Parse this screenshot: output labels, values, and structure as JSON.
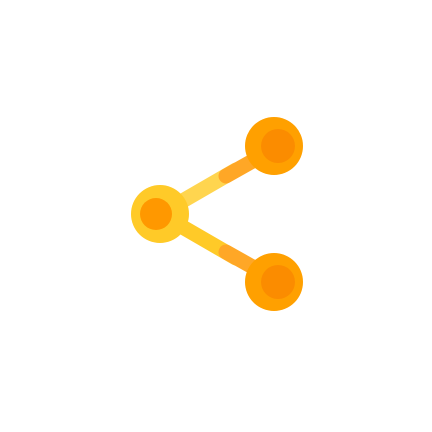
{
  "icon": {
    "name": "share-icon",
    "colors": {
      "background": "#ffffff",
      "connector_upper": "#FFD54F",
      "connector_lower": "#FFCA28",
      "connector_tip": "#FFA726",
      "left_node_outer": "#FFCA28",
      "left_node_inner": "#FF9800",
      "right_node_outer": "#FFA000",
      "right_node_inner": "#FB8C00"
    }
  }
}
